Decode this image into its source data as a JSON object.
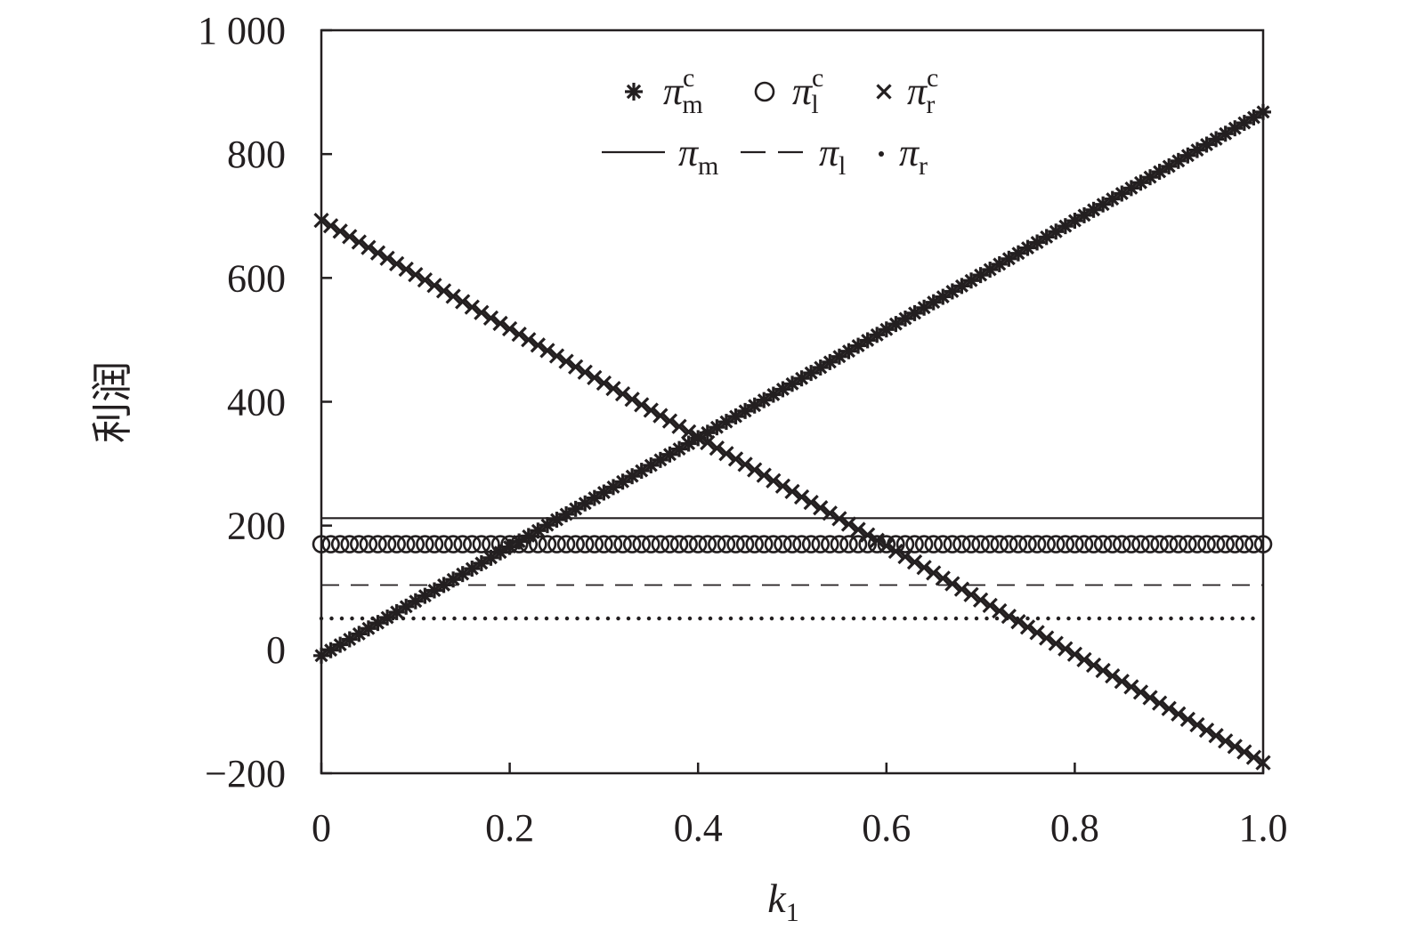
{
  "chart_data": {
    "type": "scatter",
    "xlabel": "k",
    "xlabel_sub": "1",
    "ylabel": "利润",
    "xlim": [
      0,
      1
    ],
    "ylim": [
      -200,
      1000
    ],
    "x_ticks": [
      0,
      0.2,
      0.4,
      0.6,
      0.8,
      1.0
    ],
    "x_tick_labels": [
      "0",
      "0.2",
      "0.4",
      "0.6",
      "0.8",
      "1.0"
    ],
    "y_ticks": [
      -200,
      0,
      200,
      400,
      600,
      800,
      1000
    ],
    "y_tick_labels": [
      "−200",
      "0",
      "200",
      "400",
      "600",
      "800",
      "1 000"
    ],
    "grid": false,
    "legend_position": "top-center",
    "series": [
      {
        "name": "π",
        "sub": "m",
        "sup": "c",
        "style": "asterisk-markers",
        "x": [
          0,
          1
        ],
        "y": [
          -10,
          868
        ]
      },
      {
        "name": "π",
        "sub": "l",
        "sup": "c",
        "style": "circle-markers",
        "x": [
          0,
          1
        ],
        "y": [
          170,
          170
        ]
      },
      {
        "name": "π",
        "sub": "r",
        "sup": "c",
        "style": "x-markers",
        "x": [
          0,
          1
        ],
        "y": [
          693,
          -183
        ]
      },
      {
        "name": "π",
        "sub": "m",
        "sup": "",
        "style": "solid-line",
        "x": [
          0,
          1
        ],
        "y": [
          212,
          212
        ]
      },
      {
        "name": "π",
        "sub": "l",
        "sup": "",
        "style": "dashed-line",
        "x": [
          0,
          1
        ],
        "y": [
          104,
          104
        ]
      },
      {
        "name": "π",
        "sub": "r",
        "sup": "",
        "style": "dotted-line",
        "x": [
          0,
          1
        ],
        "y": [
          50,
          50
        ]
      }
    ],
    "marker_count": 101,
    "colors": {
      "ink": "#231f20",
      "background": "#ffffff"
    }
  }
}
